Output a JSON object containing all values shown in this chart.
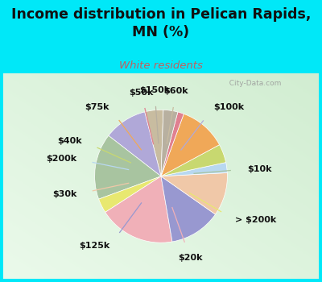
{
  "title": "Income distribution in Pelican Rapids,\nMN (%)",
  "subtitle": "White residents",
  "labels": [
    "$60k",
    "$100k",
    "$10k",
    "> $200k",
    "$20k",
    "$125k",
    "$30k",
    "$200k",
    "$40k",
    "$75k",
    "$50k",
    "$150k"
  ],
  "sizes": [
    4.5,
    10.5,
    16.0,
    3.5,
    18.5,
    12.5,
    10.5,
    2.5,
    4.5,
    11.5,
    1.5,
    3.5
  ],
  "colors": [
    "#c8bca0",
    "#b0a8d8",
    "#a8c4a0",
    "#e8e870",
    "#f0b0b8",
    "#9898d0",
    "#f0c8a8",
    "#b8d8f0",
    "#c8d870",
    "#f0a858",
    "#e08090",
    "#b8b0a0"
  ],
  "bg_color": "#00e8f8",
  "chart_bg_color": "#d8eedc",
  "title_color": "#111111",
  "subtitle_color": "#c06060",
  "label_color": "#111111",
  "watermark": "City-Data.com",
  "startangle": 88,
  "label_fontsize": 8.0,
  "title_fontsize": 12.5
}
